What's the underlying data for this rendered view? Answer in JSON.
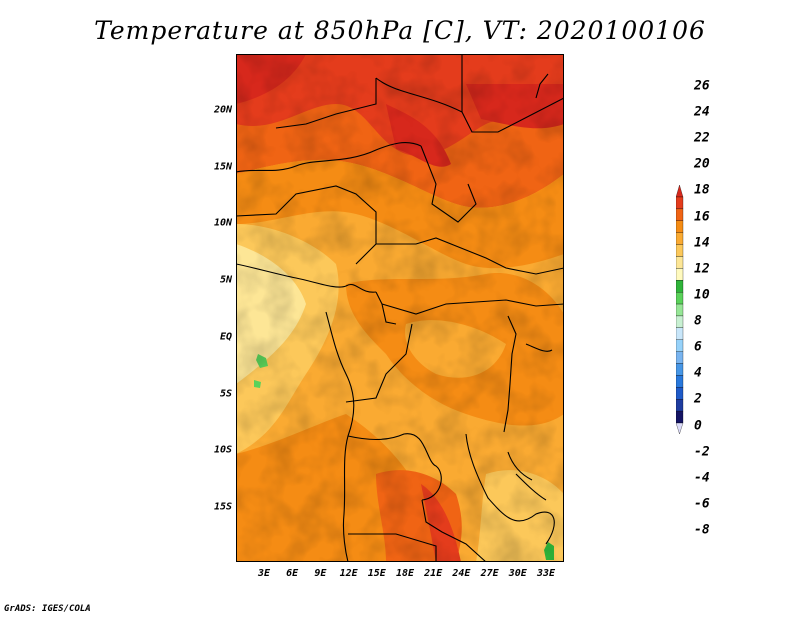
{
  "title": "Temperature at 850hPa [C], VT: 2020100106",
  "credit": "GrADS: IGES/COLA",
  "variable": "Temperature at 850hPa",
  "units": "C",
  "valid_time": "2020100106",
  "lat_labels": [
    {
      "lat": 20,
      "text": "20N"
    },
    {
      "lat": 15,
      "text": "15N"
    },
    {
      "lat": 10,
      "text": "10N"
    },
    {
      "lat": 5,
      "text": "5N"
    },
    {
      "lat": 0,
      "text": "EQ"
    },
    {
      "lat": -5,
      "text": "5S"
    },
    {
      "lat": -10,
      "text": "10S"
    },
    {
      "lat": -15,
      "text": "15S"
    }
  ],
  "lon_labels": [
    {
      "lon": 3,
      "text": "3E"
    },
    {
      "lon": 6,
      "text": "6E"
    },
    {
      "lon": 9,
      "text": "9E"
    },
    {
      "lon": 12,
      "text": "12E"
    },
    {
      "lon": 15,
      "text": "15E"
    },
    {
      "lon": 18,
      "text": "18E"
    },
    {
      "lon": 21,
      "text": "21E"
    },
    {
      "lon": 24,
      "text": "24E"
    },
    {
      "lon": 27,
      "text": "27E"
    },
    {
      "lon": 30,
      "text": "30E"
    },
    {
      "lon": 33,
      "text": "33E"
    }
  ],
  "colorbar": {
    "labels": [
      "26",
      "24",
      "22",
      "20",
      "18",
      "16",
      "14",
      "12",
      "10",
      "8",
      "6",
      "4",
      "2",
      "0",
      "-2",
      "-4",
      "-6",
      "-8"
    ],
    "colors": [
      "#d7281c",
      "#e43c1c",
      "#f06414",
      "#f58c14",
      "#faaa32",
      "#fcc85a",
      "#fde696",
      "#fffabe",
      "#2fb43a",
      "#5ad25a",
      "#96e696",
      "#c8f0d2",
      "#c8e6fa",
      "#96d2fa",
      "#78b4f0",
      "#4696e6",
      "#2878dc",
      "#1e5ac8",
      "#1e3ca0",
      "#141464",
      "#dcdcfa"
    ]
  }
}
